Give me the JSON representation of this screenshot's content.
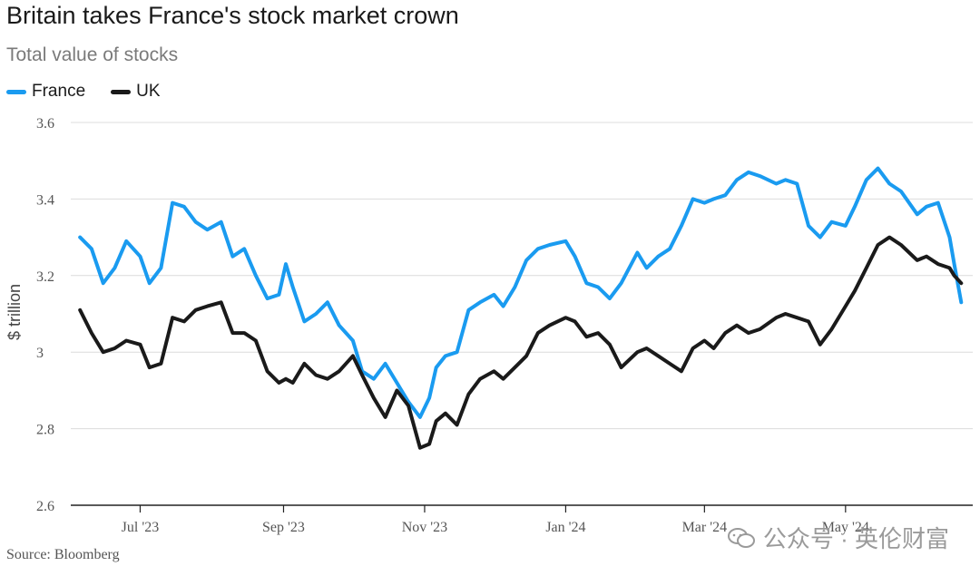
{
  "header": {
    "title": "Britain takes France's stock market crown",
    "subtitle": "Total value of stocks"
  },
  "footer": {
    "source": "Source: Bloomberg",
    "watermark": "公众号 · 英伦财富"
  },
  "chart_data": {
    "type": "line",
    "title": "Britain takes France's stock market crown",
    "subtitle": "Total value of stocks",
    "ylabel": "$ trillion",
    "xlabel": "",
    "ylim": [
      2.6,
      3.6
    ],
    "yticks": [
      2.6,
      2.8,
      3,
      3.2,
      3.4,
      3.6
    ],
    "ytick_labels": [
      "2.6",
      "2.8",
      "3",
      "3.2",
      "3.4",
      "3.6"
    ],
    "xlim": [
      "2023-06-01",
      "2024-06-25"
    ],
    "xticks": [
      "2023-07-01",
      "2023-09-01",
      "2023-11-01",
      "2024-01-01",
      "2024-03-01",
      "2024-05-01"
    ],
    "xtick_labels": [
      "Jul '23",
      "Sep '23",
      "Nov '23",
      "Jan '24",
      "Mar '24",
      "May '24"
    ],
    "grid": "horizontal",
    "legend_position": "top-left",
    "series": [
      {
        "name": "France",
        "color": "#1a9bf0",
        "points": [
          [
            "2023-06-05",
            3.3
          ],
          [
            "2023-06-10",
            3.27
          ],
          [
            "2023-06-15",
            3.18
          ],
          [
            "2023-06-20",
            3.22
          ],
          [
            "2023-06-25",
            3.29
          ],
          [
            "2023-07-01",
            3.25
          ],
          [
            "2023-07-05",
            3.18
          ],
          [
            "2023-07-10",
            3.22
          ],
          [
            "2023-07-15",
            3.39
          ],
          [
            "2023-07-20",
            3.38
          ],
          [
            "2023-07-25",
            3.34
          ],
          [
            "2023-07-30",
            3.32
          ],
          [
            "2023-08-05",
            3.34
          ],
          [
            "2023-08-10",
            3.25
          ],
          [
            "2023-08-15",
            3.27
          ],
          [
            "2023-08-20",
            3.2
          ],
          [
            "2023-08-25",
            3.14
          ],
          [
            "2023-08-30",
            3.15
          ],
          [
            "2023-09-02",
            3.23
          ],
          [
            "2023-09-05",
            3.17
          ],
          [
            "2023-09-10",
            3.08
          ],
          [
            "2023-09-15",
            3.1
          ],
          [
            "2023-09-20",
            3.13
          ],
          [
            "2023-09-25",
            3.07
          ],
          [
            "2023-10-01",
            3.03
          ],
          [
            "2023-10-05",
            2.95
          ],
          [
            "2023-10-10",
            2.93
          ],
          [
            "2023-10-15",
            2.97
          ],
          [
            "2023-10-20",
            2.92
          ],
          [
            "2023-10-25",
            2.87
          ],
          [
            "2023-10-30",
            2.83
          ],
          [
            "2023-11-03",
            2.88
          ],
          [
            "2023-11-06",
            2.96
          ],
          [
            "2023-11-10",
            2.99
          ],
          [
            "2023-11-15",
            3.0
          ],
          [
            "2023-11-20",
            3.11
          ],
          [
            "2023-11-25",
            3.13
          ],
          [
            "2023-12-01",
            3.15
          ],
          [
            "2023-12-05",
            3.12
          ],
          [
            "2023-12-10",
            3.17
          ],
          [
            "2023-12-15",
            3.24
          ],
          [
            "2023-12-20",
            3.27
          ],
          [
            "2023-12-25",
            3.28
          ],
          [
            "2024-01-01",
            3.29
          ],
          [
            "2024-01-05",
            3.25
          ],
          [
            "2024-01-10",
            3.18
          ],
          [
            "2024-01-15",
            3.17
          ],
          [
            "2024-01-20",
            3.14
          ],
          [
            "2024-01-25",
            3.18
          ],
          [
            "2024-02-01",
            3.26
          ],
          [
            "2024-02-05",
            3.22
          ],
          [
            "2024-02-10",
            3.25
          ],
          [
            "2024-02-15",
            3.27
          ],
          [
            "2024-02-20",
            3.33
          ],
          [
            "2024-02-25",
            3.4
          ],
          [
            "2024-03-01",
            3.39
          ],
          [
            "2024-03-05",
            3.4
          ],
          [
            "2024-03-10",
            3.41
          ],
          [
            "2024-03-15",
            3.45
          ],
          [
            "2024-03-20",
            3.47
          ],
          [
            "2024-03-25",
            3.46
          ],
          [
            "2024-04-01",
            3.44
          ],
          [
            "2024-04-05",
            3.45
          ],
          [
            "2024-04-10",
            3.44
          ],
          [
            "2024-04-15",
            3.33
          ],
          [
            "2024-04-20",
            3.3
          ],
          [
            "2024-04-25",
            3.34
          ],
          [
            "2024-05-01",
            3.33
          ],
          [
            "2024-05-05",
            3.38
          ],
          [
            "2024-05-10",
            3.45
          ],
          [
            "2024-05-15",
            3.48
          ],
          [
            "2024-05-20",
            3.44
          ],
          [
            "2024-05-25",
            3.42
          ],
          [
            "2024-06-01",
            3.36
          ],
          [
            "2024-06-05",
            3.38
          ],
          [
            "2024-06-10",
            3.39
          ],
          [
            "2024-06-15",
            3.3
          ],
          [
            "2024-06-17",
            3.23
          ],
          [
            "2024-06-20",
            3.13
          ]
        ]
      },
      {
        "name": "UK",
        "color": "#1a1a1a",
        "points": [
          [
            "2023-06-05",
            3.11
          ],
          [
            "2023-06-10",
            3.05
          ],
          [
            "2023-06-15",
            3.0
          ],
          [
            "2023-06-20",
            3.01
          ],
          [
            "2023-06-25",
            3.03
          ],
          [
            "2023-07-01",
            3.02
          ],
          [
            "2023-07-05",
            2.96
          ],
          [
            "2023-07-10",
            2.97
          ],
          [
            "2023-07-15",
            3.09
          ],
          [
            "2023-07-20",
            3.08
          ],
          [
            "2023-07-25",
            3.11
          ],
          [
            "2023-07-30",
            3.12
          ],
          [
            "2023-08-05",
            3.13
          ],
          [
            "2023-08-10",
            3.05
          ],
          [
            "2023-08-15",
            3.05
          ],
          [
            "2023-08-20",
            3.03
          ],
          [
            "2023-08-25",
            2.95
          ],
          [
            "2023-08-30",
            2.92
          ],
          [
            "2023-09-02",
            2.93
          ],
          [
            "2023-09-05",
            2.92
          ],
          [
            "2023-09-10",
            2.97
          ],
          [
            "2023-09-15",
            2.94
          ],
          [
            "2023-09-20",
            2.93
          ],
          [
            "2023-09-25",
            2.95
          ],
          [
            "2023-10-01",
            2.99
          ],
          [
            "2023-10-05",
            2.94
          ],
          [
            "2023-10-10",
            2.88
          ],
          [
            "2023-10-15",
            2.83
          ],
          [
            "2023-10-20",
            2.9
          ],
          [
            "2023-10-25",
            2.86
          ],
          [
            "2023-10-30",
            2.75
          ],
          [
            "2023-11-03",
            2.76
          ],
          [
            "2023-11-06",
            2.82
          ],
          [
            "2023-11-10",
            2.84
          ],
          [
            "2023-11-15",
            2.81
          ],
          [
            "2023-11-20",
            2.89
          ],
          [
            "2023-11-25",
            2.93
          ],
          [
            "2023-12-01",
            2.95
          ],
          [
            "2023-12-05",
            2.93
          ],
          [
            "2023-12-10",
            2.96
          ],
          [
            "2023-12-15",
            2.99
          ],
          [
            "2023-12-20",
            3.05
          ],
          [
            "2023-12-25",
            3.07
          ],
          [
            "2024-01-01",
            3.09
          ],
          [
            "2024-01-05",
            3.08
          ],
          [
            "2024-01-10",
            3.04
          ],
          [
            "2024-01-15",
            3.05
          ],
          [
            "2024-01-20",
            3.02
          ],
          [
            "2024-01-25",
            2.96
          ],
          [
            "2024-02-01",
            3.0
          ],
          [
            "2024-02-05",
            3.01
          ],
          [
            "2024-02-10",
            2.99
          ],
          [
            "2024-02-15",
            2.97
          ],
          [
            "2024-02-20",
            2.95
          ],
          [
            "2024-02-25",
            3.01
          ],
          [
            "2024-03-01",
            3.03
          ],
          [
            "2024-03-05",
            3.01
          ],
          [
            "2024-03-10",
            3.05
          ],
          [
            "2024-03-15",
            3.07
          ],
          [
            "2024-03-20",
            3.05
          ],
          [
            "2024-03-25",
            3.06
          ],
          [
            "2024-04-01",
            3.09
          ],
          [
            "2024-04-05",
            3.1
          ],
          [
            "2024-04-10",
            3.09
          ],
          [
            "2024-04-15",
            3.08
          ],
          [
            "2024-04-20",
            3.02
          ],
          [
            "2024-04-25",
            3.06
          ],
          [
            "2024-05-01",
            3.12
          ],
          [
            "2024-05-05",
            3.16
          ],
          [
            "2024-05-10",
            3.22
          ],
          [
            "2024-05-15",
            3.28
          ],
          [
            "2024-05-20",
            3.3
          ],
          [
            "2024-05-25",
            3.28
          ],
          [
            "2024-06-01",
            3.24
          ],
          [
            "2024-06-05",
            3.25
          ],
          [
            "2024-06-10",
            3.23
          ],
          [
            "2024-06-15",
            3.22
          ],
          [
            "2024-06-17",
            3.2
          ],
          [
            "2024-06-20",
            3.18
          ]
        ]
      }
    ]
  }
}
